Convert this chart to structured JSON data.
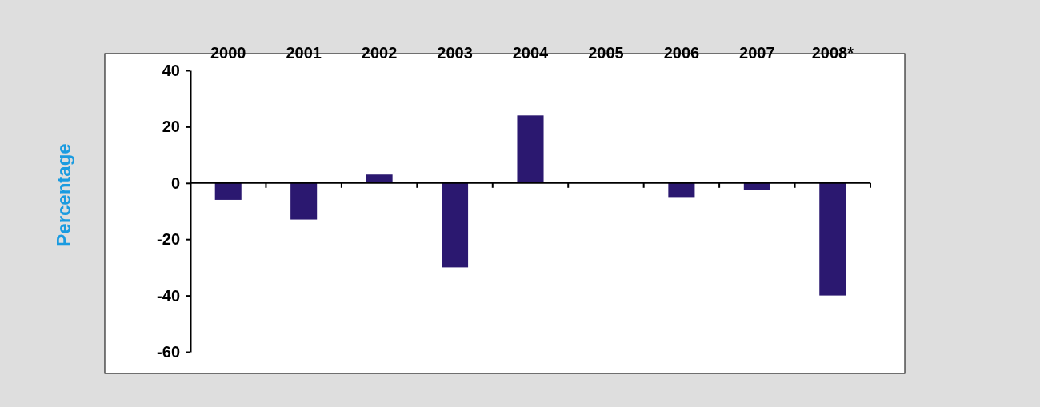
{
  "chart_data": {
    "type": "bar",
    "ylabel": "Percentage",
    "categories": [
      "2000",
      "2001",
      "2002",
      "2003",
      "2004",
      "2005",
      "2006",
      "2007",
      "2008*"
    ],
    "values": [
      -6,
      -13,
      3,
      -30,
      24,
      0.5,
      -5,
      -2.5,
      -40
    ],
    "color": "#2b1870",
    "ylim": [
      -60,
      40
    ],
    "yticks": [
      -60,
      -40,
      -20,
      0,
      20,
      40
    ]
  }
}
